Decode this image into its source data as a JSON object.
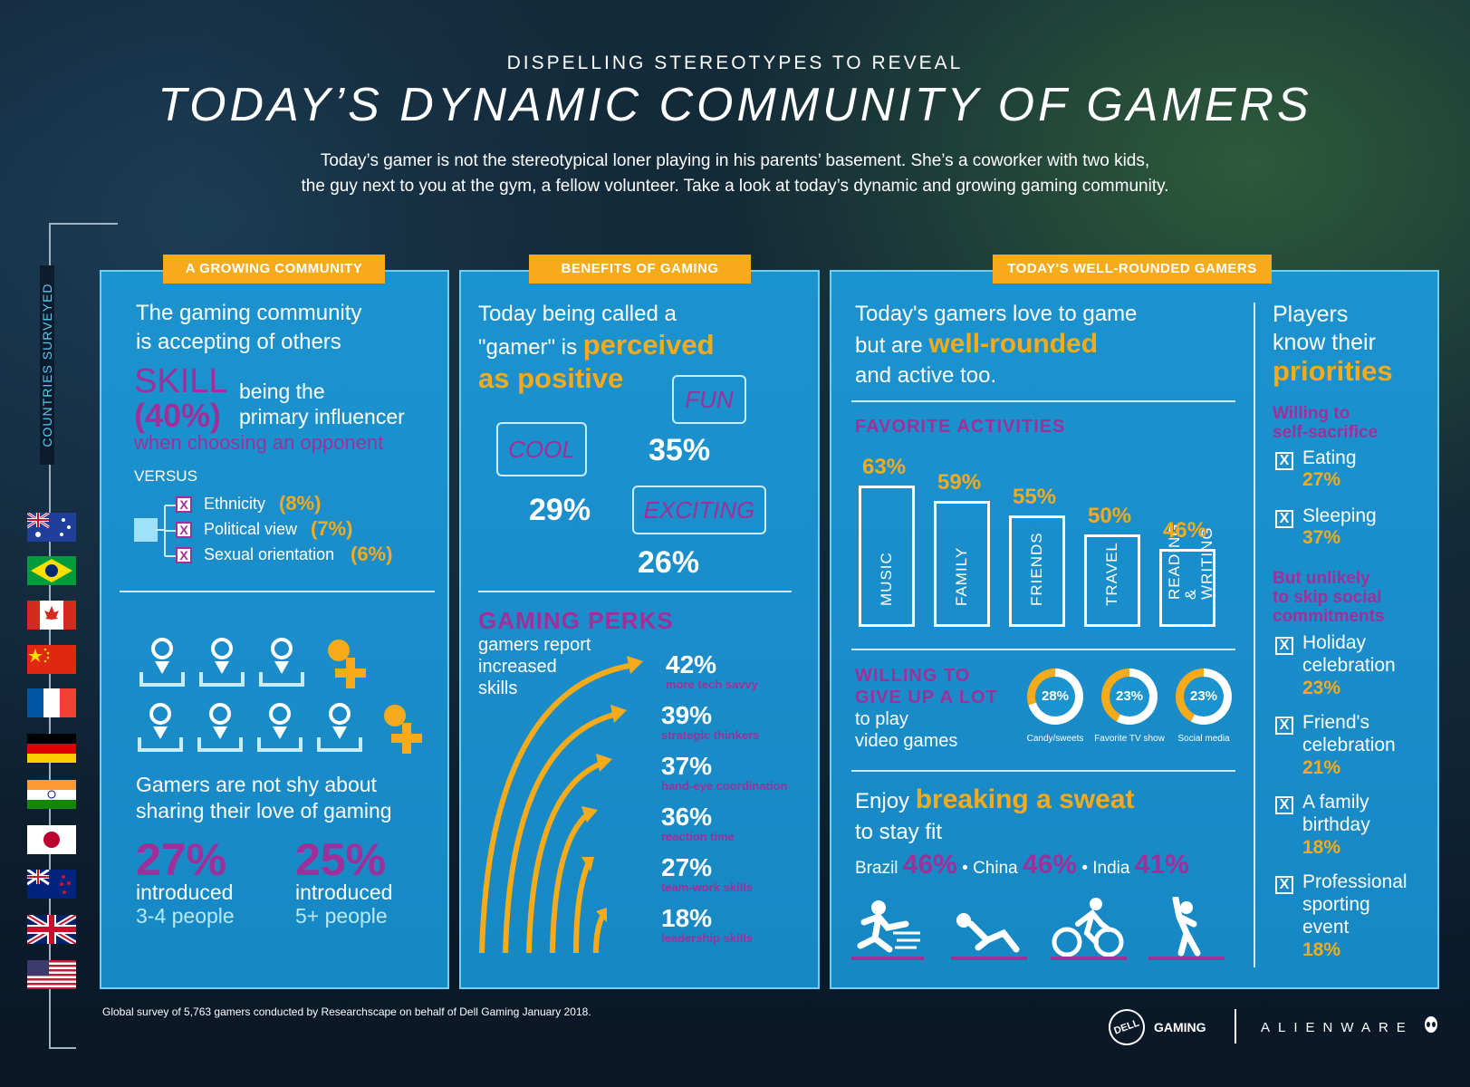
{
  "header": {
    "kicker": "DISPELLING STEREOTYPES TO REVEAL",
    "title": "TODAY’S DYNAMIC COMMUNITY OF GAMERS",
    "intro_line1": "Today’s gamer is not the stereotypical loner playing in his parents’ basement. She’s a coworker with two kids,",
    "intro_line2": "the guy next to you at the gym, a fellow volunteer. Take a look at today’s dynamic and growing gaming community."
  },
  "sidebar": {
    "label": "COUNTRIES SURVEYED",
    "flags": [
      "australia-flag-icon",
      "brazil-flag-icon",
      "canada-flag-icon",
      "china-flag-icon",
      "france-flag-icon",
      "germany-flag-icon",
      "india-flag-icon",
      "japan-flag-icon",
      "new-zealand-flag-icon",
      "uk-flag-icon",
      "usa-flag-icon"
    ]
  },
  "colors": {
    "accent": "#f7ab1a",
    "purple": "#a02f9a",
    "panel": "#1b93cf"
  },
  "community": {
    "tag": "A GROWING COMMUNITY",
    "heading_line1": "The gaming community",
    "heading_line2": "is accepting of others",
    "skill": "SKILL",
    "skill_pct": "(40%)",
    "skill_text1": "being the",
    "skill_text2": "primary influencer",
    "skill_text3": "when choosing an opponent",
    "versus": "VERSUS",
    "factors": [
      {
        "label": "Ethnicity",
        "pct": "(8%)"
      },
      {
        "label": "Political view",
        "pct": "(7%)"
      },
      {
        "label": "Sexual orientation",
        "pct": "(6%)"
      }
    ],
    "share_line1": "Gamers are not shy about",
    "share_line2": "sharing their love of gaming",
    "stats": [
      {
        "pct": "27%",
        "line1": "introduced",
        "line2": "3-4 people"
      },
      {
        "pct": "25%",
        "line1": "introduced",
        "line2": "5+ people"
      }
    ]
  },
  "benefits": {
    "tag": "BENEFITS OF GAMING",
    "heading_line1": "Today being called a",
    "heading_line2a": "\"gamer\" is",
    "heading_line2b": "perceived",
    "heading_line3": "as positive",
    "words": [
      {
        "label": "COOL",
        "pct": "29%"
      },
      {
        "label": "FUN",
        "pct": "35%"
      },
      {
        "label": "EXCITING",
        "pct": "26%"
      }
    ],
    "perks_title": "GAMING PERKS",
    "perks_line1": "gamers report",
    "perks_line2": "increased",
    "perks_line3": "skills",
    "perks": [
      {
        "pct": "42%",
        "label": "more tech savvy"
      },
      {
        "pct": "39%",
        "label": "strategic thinkers"
      },
      {
        "pct": "37%",
        "label": "hand-eye coordination"
      },
      {
        "pct": "36%",
        "label": "reaction time"
      },
      {
        "pct": "27%",
        "label": "team-work skills"
      },
      {
        "pct": "18%",
        "label": "leadership skills"
      }
    ]
  },
  "rounded": {
    "tag": "TODAY'S WELL-ROUNDED GAMERS",
    "heading_line1": "Today's gamers love to game",
    "heading_line2a": "but are",
    "heading_line2b": "well-rounded",
    "heading_line3": "and active too.",
    "fav_title": "FAVORITE ACTIVITIES",
    "activities": [
      {
        "pct": "63%",
        "label": "MUSIC"
      },
      {
        "pct": "59%",
        "label": "FAMILY"
      },
      {
        "pct": "55%",
        "label": "FRIENDS"
      },
      {
        "pct": "50%",
        "label": "TRAVEL"
      },
      {
        "pct": "46%",
        "label": "READING & WRITING"
      }
    ],
    "giveup_line1": "WILLING TO",
    "giveup_line2": "GIVE UP A LOT",
    "giveup_line3": "to play",
    "giveup_line4": "video games",
    "giveup": [
      {
        "pct": "28%",
        "value": 28,
        "label": "Candy/sweets"
      },
      {
        "pct": "23%",
        "value": 23,
        "label": "Favorite TV show"
      },
      {
        "pct": "23%",
        "value": 23,
        "label": "Social media"
      }
    ],
    "sweat_a": "Enjoy",
    "sweat_b": "breaking a sweat",
    "sweat_c": "to stay fit",
    "countries": [
      {
        "name": "Brazil",
        "pct": "46%"
      },
      {
        "name": "China",
        "pct": "46%"
      },
      {
        "name": "India",
        "pct": "41%"
      }
    ],
    "sport_icons": [
      "running-icon",
      "situp-icon",
      "cycling-icon",
      "stretching-icon"
    ]
  },
  "priorities": {
    "heading_line1": "Players",
    "heading_line2": "know their",
    "heading_line3": "priorities",
    "sacrifice_line1": "Willing to",
    "sacrifice_line2": "self-sacrifice",
    "sacrifice": [
      {
        "label": "Eating",
        "pct": "27%"
      },
      {
        "label": "Sleeping",
        "pct": "37%"
      }
    ],
    "unlikely_line1": "But unlikely",
    "unlikely_line2": "to skip social",
    "unlikely_line3": "commitments",
    "social": [
      {
        "line1": "Holiday",
        "line2": "celebration",
        "pct": "23%"
      },
      {
        "line1": "Friend's",
        "line2": "celebration",
        "pct": "21%"
      },
      {
        "line1": "A family",
        "line2": "birthday",
        "pct": "18%"
      },
      {
        "line1": "Professional",
        "line2": "sporting",
        "line3": "event",
        "pct": "18%"
      }
    ],
    "check_mark": "X"
  },
  "footer": {
    "note": "Global survey of 5,763 gamers conducted by Researchscape on behalf of Dell Gaming January 2018.",
    "dell": "DELL",
    "gaming": "GAMING",
    "alienware": "ALIENWARE"
  }
}
